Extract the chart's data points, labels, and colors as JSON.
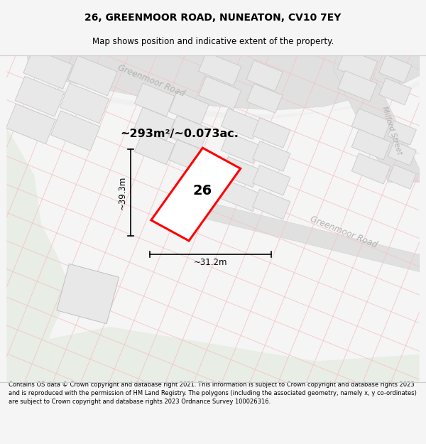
{
  "title": "26, GREENMOOR ROAD, NUNEATON, CV10 7EY",
  "subtitle": "Map shows position and indicative extent of the property.",
  "footer": "Contains OS data © Crown copyright and database right 2021. This information is subject to Crown copyright and database rights 2023 and is reproduced with the permission of HM Land Registry. The polygons (including the associated geometry, namely x, y co-ordinates) are subject to Crown copyright and database rights 2023 Ordnance Survey 100026316.",
  "area_label": "~293m²/~0.073ac.",
  "number_label": "26",
  "dim_h": "~39.3m",
  "dim_w": "~31.2m",
  "road_label_1": "Greenmoor Road",
  "road_label_2": "Milford Street",
  "road_label_3": "Greenmoor Road",
  "map_bg": "#ffffff",
  "green_color": "#e8ede5",
  "road_color": "#e8e8e8",
  "plot_color": "#ff0000",
  "grid_color": "#f5c5c5",
  "building_face": "#e8e8e8",
  "building_edge": "#c8c8c8",
  "title_fontsize": 10,
  "subtitle_fontsize": 8.5,
  "footer_fontsize": 6.0
}
